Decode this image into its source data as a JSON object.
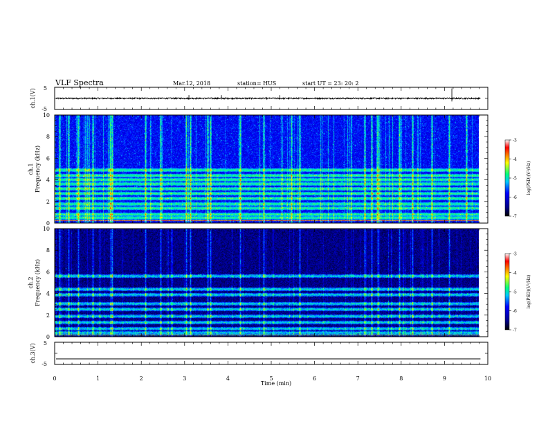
{
  "header": {
    "title": "VLF Spectra",
    "date": "Mar.12, 2018",
    "station": "station= HUS",
    "start": "start  UT =   23: 20: 2"
  },
  "chart_data": [
    {
      "type": "line",
      "panel": "ch1-waveform",
      "ylabel": "ch.1(V)",
      "ylim": [
        -5,
        5
      ],
      "yticks": [
        "5",
        "-5"
      ],
      "xlim": [
        0,
        10
      ],
      "series_color": "#000000",
      "baseline": 0
    },
    {
      "type": "heatmap",
      "panel": "ch1-spectrogram",
      "ylabel_line1": "ch.1",
      "ylabel_line2": "Frequency (kHz)",
      "ylim": [
        0,
        10
      ],
      "yticks": [
        "0",
        "2",
        "4",
        "6",
        "8",
        "10"
      ],
      "xlim": [
        0,
        9.83
      ],
      "bands_khz": [
        0.45,
        0.75,
        1.35,
        1.75,
        2.25,
        2.7,
        3.15,
        3.6,
        4.0,
        4.4,
        4.9
      ],
      "line_khz": [
        0.2
      ],
      "bursts_min": [
        0.12,
        0.32,
        0.55,
        0.88,
        1.28,
        1.3,
        1.33,
        2.1,
        2.45,
        3.05,
        3.15,
        3.55,
        3.62,
        4.3,
        4.85,
        5.5,
        5.68,
        7.2,
        7.35,
        7.48,
        7.52,
        8.0,
        8.3,
        8.75,
        9.15,
        9.55
      ]
    },
    {
      "type": "heatmap",
      "panel": "ch2-spectrogram",
      "ylabel_line1": "ch.2",
      "ylabel_line2": "Frequency (kHz)",
      "ylim": [
        0,
        10
      ],
      "yticks": [
        "0",
        "2",
        "4",
        "6",
        "8",
        "10"
      ],
      "xlim": [
        0,
        9.83
      ],
      "bands_khz": [
        0.3,
        0.7,
        1.3,
        1.9,
        2.5,
        3.0,
        3.9,
        4.4,
        5.6
      ],
      "line_khz": [
        0.15
      ],
      "bursts_min": [
        0.12,
        0.32,
        0.55,
        0.88,
        1.3,
        1.33,
        2.1,
        2.45,
        3.05,
        3.15,
        3.55,
        3.62,
        4.3,
        4.85,
        5.68,
        7.2,
        7.35,
        7.5,
        8.0,
        8.3,
        8.75,
        9.15
      ]
    },
    {
      "type": "line",
      "panel": "ch3-waveform",
      "ylabel": "ch.3(V)",
      "ylim": [
        -5,
        5
      ],
      "yticks": [
        "5",
        "-5"
      ],
      "xlim": [
        0,
        10
      ],
      "series_color": "#000000",
      "baseline": -2.5
    }
  ],
  "x_axis": {
    "label": "Time  (min)",
    "ticks": [
      "0",
      "1",
      "2",
      "3",
      "4",
      "5",
      "6",
      "7",
      "8",
      "9",
      "10"
    ],
    "range": [
      0,
      10
    ]
  },
  "colorbars": [
    {
      "label": "log(PSD)(V²/Hz)",
      "ticks": [
        "-3",
        "-4",
        "-5",
        "-6",
        "-7"
      ],
      "range": [
        -7,
        -3
      ],
      "colors": [
        "#000000",
        "#00008b",
        "#0000ff",
        "#00c8ff",
        "#00ff80",
        "#ffff00",
        "#ff8000",
        "#ff0000",
        "#ffffff"
      ]
    },
    {
      "label": "log(PSD)(V²/Hz)",
      "ticks": [
        "-3",
        "-4",
        "-5",
        "-6",
        "-7"
      ],
      "range": [
        -7,
        -3
      ],
      "colors": [
        "#000000",
        "#00008b",
        "#0000ff",
        "#00c8ff",
        "#00ff80",
        "#ffff00",
        "#ff8000",
        "#ff0000",
        "#ffffff"
      ]
    }
  ]
}
